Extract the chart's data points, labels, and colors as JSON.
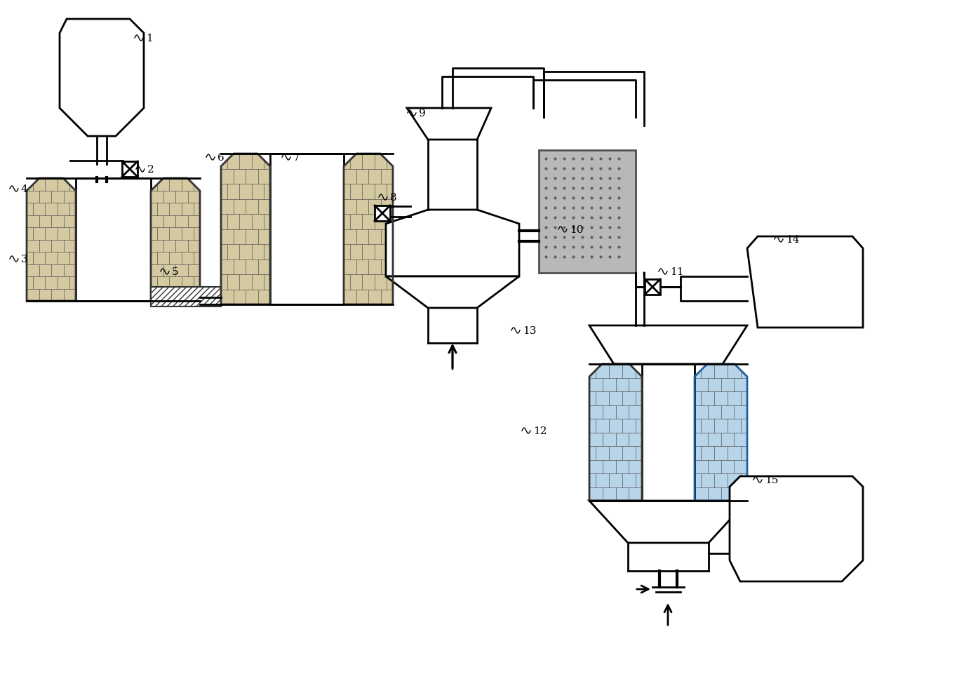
{
  "bg_color": "#ffffff",
  "line_color": "#000000",
  "brick_color_tan": "#d4c9a0",
  "brick_color_blue": "#b8d4e8",
  "dot_fill_color": "#b8b8b8"
}
